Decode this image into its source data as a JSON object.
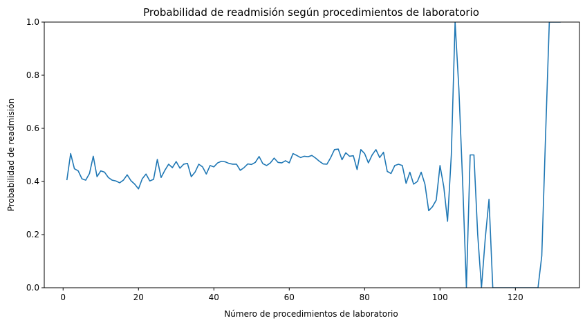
{
  "chart_data": {
    "type": "line",
    "title": "Probabilidad de readmisión según procedimientos de laboratorio",
    "xlabel": "Número de procedimientos de laboratorio",
    "ylabel": "Probabilidad de readmisión",
    "xlim": [
      -5,
      137
    ],
    "ylim": [
      0,
      1
    ],
    "xticks": [
      0,
      20,
      40,
      60,
      80,
      100,
      120
    ],
    "yticks": [
      0.0,
      0.2,
      0.4,
      0.6,
      0.8,
      1.0
    ],
    "xtick_labels": [
      "0",
      "20",
      "40",
      "60",
      "80",
      "100",
      "120"
    ],
    "ytick_labels": [
      "0.0",
      "0.2",
      "0.4",
      "0.6",
      "0.8",
      "1.0"
    ],
    "grid": false,
    "line_color": "#1f77b4",
    "x": [
      1,
      2,
      3,
      4,
      5,
      6,
      7,
      8,
      9,
      10,
      11,
      12,
      13,
      14,
      15,
      16,
      17,
      18,
      19,
      20,
      21,
      22,
      23,
      24,
      25,
      26,
      27,
      28,
      29,
      30,
      31,
      32,
      33,
      34,
      35,
      36,
      37,
      38,
      39,
      40,
      41,
      42,
      43,
      44,
      45,
      46,
      47,
      48,
      49,
      50,
      51,
      52,
      53,
      54,
      55,
      56,
      57,
      58,
      59,
      60,
      61,
      62,
      63,
      64,
      65,
      66,
      67,
      68,
      69,
      70,
      71,
      72,
      73,
      74,
      75,
      76,
      77,
      78,
      79,
      80,
      81,
      82,
      83,
      84,
      85,
      86,
      87,
      88,
      89,
      90,
      91,
      92,
      93,
      94,
      95,
      96,
      97,
      98,
      99,
      100,
      101,
      102,
      103,
      104,
      105,
      106,
      107,
      108,
      109,
      110,
      111,
      112,
      113,
      114,
      120,
      126,
      127,
      128,
      129,
      130,
      131,
      132
    ],
    "y": [
      0.405,
      0.505,
      0.448,
      0.44,
      0.41,
      0.405,
      0.43,
      0.495,
      0.418,
      0.44,
      0.435,
      0.415,
      0.405,
      0.402,
      0.395,
      0.405,
      0.425,
      0.403,
      0.39,
      0.372,
      0.41,
      0.428,
      0.402,
      0.408,
      0.483,
      0.415,
      0.442,
      0.465,
      0.452,
      0.475,
      0.45,
      0.465,
      0.468,
      0.418,
      0.435,
      0.465,
      0.455,
      0.428,
      0.46,
      0.455,
      0.47,
      0.476,
      0.474,
      0.468,
      0.465,
      0.465,
      0.442,
      0.452,
      0.466,
      0.464,
      0.472,
      0.494,
      0.467,
      0.46,
      0.47,
      0.488,
      0.472,
      0.47,
      0.478,
      0.47,
      0.505,
      0.498,
      0.49,
      0.495,
      0.493,
      0.498,
      0.488,
      0.476,
      0.466,
      0.465,
      0.49,
      0.52,
      0.522,
      0.482,
      0.508,
      0.495,
      0.497,
      0.445,
      0.52,
      0.505,
      0.47,
      0.5,
      0.52,
      0.49,
      0.51,
      0.438,
      0.43,
      0.46,
      0.465,
      0.46,
      0.393,
      0.435,
      0.39,
      0.4,
      0.435,
      0.39,
      0.29,
      0.305,
      0.33,
      0.46,
      0.38,
      0.25,
      0.5,
      1.0,
      0.75,
      0.4,
      0.0,
      0.5,
      0.5,
      0.2,
      0.0,
      0.185,
      0.333,
      0.0,
      0.0,
      0.0,
      0.12,
      0.57,
      1.0,
      1.0,
      1.0,
      1.0
    ]
  }
}
